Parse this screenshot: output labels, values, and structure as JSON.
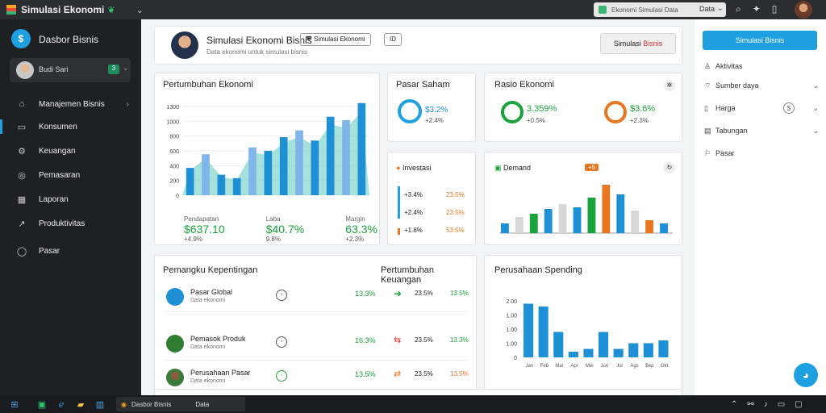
{
  "titlebar": {
    "title": "Simulasi Ekonomi",
    "search_text": "Ekonomi Simulasi Data",
    "search_btn": "Data",
    "icons": [
      "search-icon",
      "puzzle-icon",
      "phone-icon"
    ]
  },
  "sidebar": {
    "app_name": "Dasbor Bisnis",
    "user_name": "Budi Sari",
    "user_badge": "3",
    "items": [
      {
        "label": "Manajemen Bisnis",
        "icon": "home-icon",
        "trail": "›"
      },
      {
        "label": "Konsumen",
        "icon": "doc-icon"
      },
      {
        "label": "Keuangan",
        "icon": "gear-icon"
      },
      {
        "label": "Pemasaran",
        "icon": "globe-icon"
      },
      {
        "label": "Laporan",
        "icon": "grid-icon"
      },
      {
        "label": "Produktivitas",
        "icon": "chart-icon"
      },
      {
        "label": "Pasar",
        "icon": "pin-icon"
      }
    ]
  },
  "header": {
    "title": "Simulasi Ekonomi Bisnis",
    "subtitle": "Data ekonomi untuk simulasi bisnis",
    "tag": "Simulasi Ekonomi",
    "tag2": "ID",
    "action": "Simulasi",
    "action2": "Bisnis"
  },
  "cards": {
    "growth": {
      "title": "Pertumbuhan Ekonomi",
      "y_ticks": [
        "1300",
        "1000",
        "800",
        "600",
        "400",
        "200",
        "0"
      ],
      "stats": [
        {
          "value": "$637.10",
          "sub": "+4.9%",
          "label": "Pendapatan"
        },
        {
          "value": "$40.7%",
          "sub": "9.8%",
          "label": "Laba"
        },
        {
          "value": "63.3%",
          "sub": "+2.3%",
          "label": "Margin"
        }
      ]
    },
    "profit": {
      "title": "Pasar Saham",
      "value": "$3.2%",
      "sub": "+2.4%"
    },
    "usage": {
      "title": "Rasio Ekonomi",
      "a_value": "3.359%",
      "a_sub": "+0.5%",
      "b_value": "$3.6%",
      "b_sub": "+2.3%"
    },
    "investment": {
      "title": "Investasi",
      "rows": [
        {
          "label": "+3.4%",
          "value": "23.5%"
        },
        {
          "label": "+2.4%",
          "value": "23.5%"
        },
        {
          "label": "+1.8%",
          "value": "53.5%"
        }
      ]
    },
    "demand": {
      "title": "Demand",
      "badge": "+5"
    },
    "companies": {
      "title": "Pemangku Kepentingan",
      "rows": [
        {
          "name": "Pasar Global",
          "sub": "Data ekonomi",
          "pct": "13.3%"
        },
        {
          "name": "Pemasok Produk",
          "sub": "Data ekonomi",
          "pct": "16.3%"
        },
        {
          "name": "Perusahaan Pasar",
          "sub": "Data ekonomi",
          "pct": "13.5%"
        }
      ]
    },
    "perf": {
      "title": "Pertumbuhan Keuangan",
      "rows": [
        {
          "val": "23.5%",
          "pct": "13.5%"
        },
        {
          "val": "23.5%",
          "pct": "13.3%"
        },
        {
          "val": "23.5%",
          "pct": "13.5%"
        }
      ]
    },
    "spending": {
      "title": "Perusahaan Spending",
      "y_ticks": [
        "2.00",
        "1.00",
        "1.00",
        "1.00",
        "0"
      ],
      "x_ticks": [
        "Jan",
        "Feb",
        "Mar",
        "Apr",
        "Mei",
        "Jun",
        "Jul",
        "Ags",
        "Sep",
        "Okt"
      ]
    }
  },
  "right_panel": {
    "button": "Simulasi Bisnis",
    "items": [
      {
        "label": "Aktivitas",
        "icon": "user-icon"
      },
      {
        "label": "Sumber daya",
        "icon": "tag-icon",
        "trail": "⌄"
      },
      {
        "label": "Harga",
        "icon": "box-icon",
        "trail": "$"
      },
      {
        "label": "Tabungan",
        "icon": "grid-icon",
        "trail": "⌄"
      },
      {
        "label": "Pasar",
        "icon": "flag-icon"
      }
    ]
  },
  "taskbar": {
    "app_label": "Dasbor Bisnis",
    "app_label2": "Data"
  },
  "chart_data": [
    {
      "type": "bar",
      "title": "Pertumbuhan Ekonomi",
      "ylim": [
        0,
        1300
      ],
      "series": [
        {
          "name": "",
          "values": [
            400,
            600,
            300,
            250,
            700,
            650,
            850,
            950,
            800,
            1150,
            1100,
            1350
          ]
        }
      ]
    },
    {
      "type": "bar",
      "title": "Demand",
      "series": [
        {
          "name": "",
          "values": [
            30,
            50,
            60,
            75,
            90,
            80,
            110,
            150,
            120,
            70,
            40,
            30
          ]
        }
      ]
    },
    {
      "type": "bar",
      "title": "Perusahaan Spending",
      "ylim": [
        0,
        2
      ],
      "categories": [
        "Jan",
        "Feb",
        "Mar",
        "Apr",
        "Mei",
        "Jun",
        "Jul",
        "Ags",
        "Sep",
        "Okt"
      ],
      "series": [
        {
          "name": "",
          "values": [
            1.9,
            1.8,
            0.9,
            0.2,
            0.3,
            0.9,
            0.3,
            0.5,
            0.5,
            0.6
          ]
        }
      ]
    }
  ]
}
